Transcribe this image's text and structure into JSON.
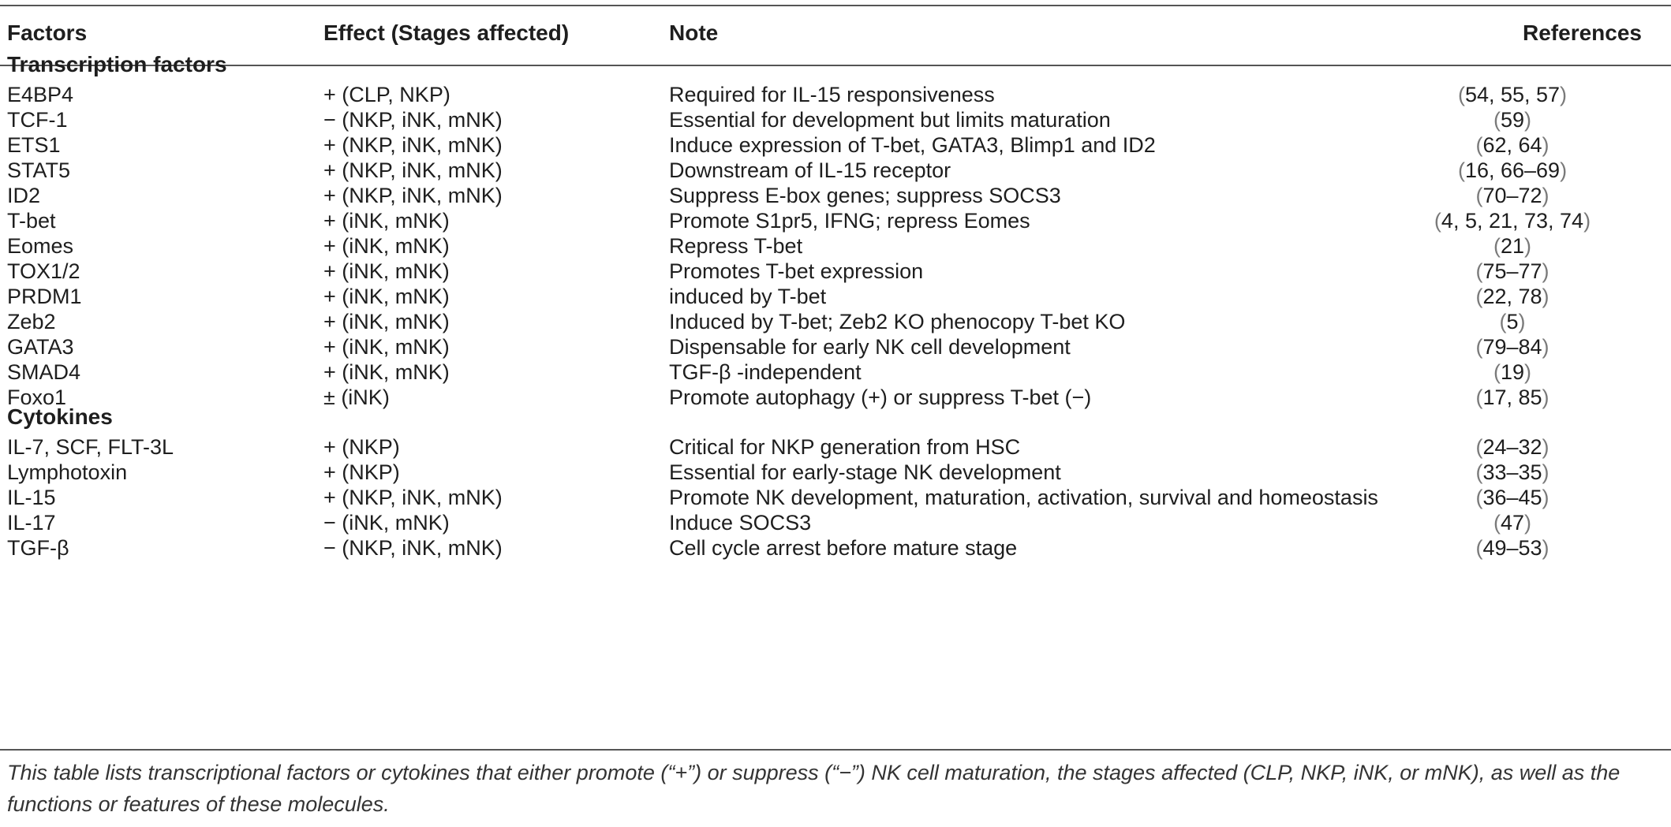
{
  "headers": {
    "factors": "Factors",
    "effect": "Effect (Stages affected)",
    "note": "Note",
    "references": "References"
  },
  "sections": [
    {
      "title": "Transcription factors",
      "rows": [
        {
          "factor": "E4BP4",
          "effect": "+ (CLP, NKP)",
          "note": "Required for IL-15 responsiveness",
          "references": "54, 55, 57"
        },
        {
          "factor": "TCF-1",
          "effect": "− (NKP, iNK, mNK)",
          "note": "Essential for development but limits maturation",
          "references": "59"
        },
        {
          "factor": "ETS1",
          "effect": "+ (NKP, iNK, mNK)",
          "note": "Induce expression of T-bet, GATA3, Blimp1 and ID2",
          "references": "62, 64"
        },
        {
          "factor": "STAT5",
          "effect": "+ (NKP, iNK, mNK)",
          "note": "Downstream of IL-15 receptor",
          "references": "16, 66–69"
        },
        {
          "factor": "ID2",
          "effect": "+ (NKP, iNK, mNK)",
          "note": "Suppress E-box genes; suppress SOCS3",
          "references": "70–72"
        },
        {
          "factor": "T-bet",
          "effect": "+ (iNK, mNK)",
          "note": "Promote S1pr5, IFNG; repress Eomes",
          "references": "4, 5, 21, 73, 74"
        },
        {
          "factor": "Eomes",
          "effect": "+ (iNK, mNK)",
          "note": "Repress T-bet",
          "references": "21"
        },
        {
          "factor": "TOX1/2",
          "effect": "+ (iNK, mNK)",
          "note": "Promotes T-bet expression",
          "references": "75–77"
        },
        {
          "factor": "PRDM1",
          "effect": "+ (iNK, mNK)",
          "note": "induced by T-bet",
          "references": "22, 78"
        },
        {
          "factor": "Zeb2",
          "effect": "+ (iNK, mNK)",
          "note": "Induced by T-bet; Zeb2 KO phenocopy T-bet KO",
          "references": "5"
        },
        {
          "factor": "GATA3",
          "effect": "+ (iNK, mNK)",
          "note": "Dispensable for early NK cell development",
          "references": "79–84"
        },
        {
          "factor": "SMAD4",
          "effect": "+ (iNK, mNK)",
          "note": "TGF-β -independent",
          "references": "19"
        },
        {
          "factor": "Foxo1",
          "effect": "± (iNK)",
          "note": "Promote autophagy (+) or suppress T-bet (−)",
          "references": "17, 85"
        }
      ]
    },
    {
      "title": "Cytokines",
      "rows": [
        {
          "factor": "IL-7, SCF, FLT-3L",
          "effect": "+ (NKP)",
          "note": "Critical for NKP generation from HSC",
          "references": "24–32"
        },
        {
          "factor": "Lymphotoxin",
          "effect": "+ (NKP)",
          "note": "Essential for early-stage NK development",
          "references": "33–35"
        },
        {
          "factor": "IL-15",
          "effect": "+ (NKP, iNK, mNK)",
          "note": "Promote NK development, maturation, activation, survival and homeostasis",
          "references": "36–45"
        },
        {
          "factor": "IL-17",
          "effect": "− (iNK, mNK)",
          "note": "Induce SOCS3",
          "references": "47"
        },
        {
          "factor": "TGF-β",
          "effect": "− (NKP, iNK, mNK)",
          "note": "Cell cycle arrest before mature stage",
          "references": "49–53"
        }
      ]
    }
  ],
  "footnote": "This table lists transcriptional factors or cytokines that either promote (“+”) or suppress (“−”) NK cell maturation, the stages affected (CLP, NKP, iNK, or mNK), as well as the functions or features of these molecules."
}
